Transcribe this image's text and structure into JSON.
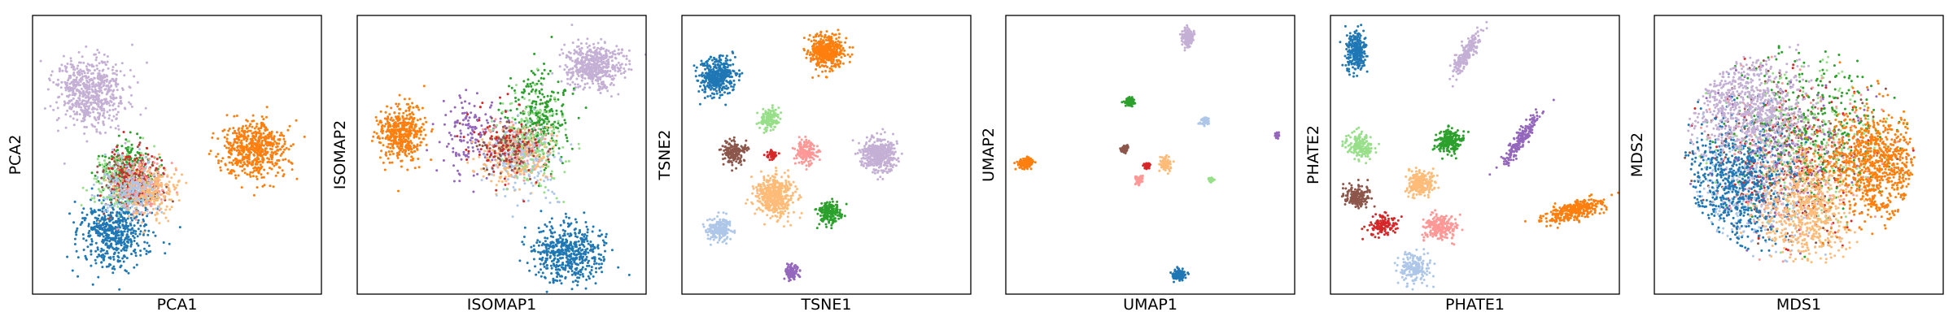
{
  "colors": {
    "c0": "#1f77b4",
    "c1": "#aec7e8",
    "c2": "#ff7f0e",
    "c3": "#ffbb78",
    "c4": "#2ca02c",
    "c5": "#98df8a",
    "c6": "#d62728",
    "c7": "#ff9896",
    "c8": "#9467bd",
    "c9": "#c5b0d5",
    "c10": "#8c564b"
  },
  "chart_data": [
    {
      "type": "scatter",
      "xlabel": "PCA1",
      "ylabel": "PCA2",
      "xlim": [
        0,
        100
      ],
      "ylim": [
        0,
        100
      ],
      "ticks": "none",
      "grid": false,
      "legend": "none",
      "clusters": [
        {
          "color": "c9",
          "x": 20,
          "y": 72,
          "sx": 6,
          "sy": 6,
          "n": 620
        },
        {
          "color": "c2",
          "x": 77,
          "y": 52,
          "sx": 6,
          "sy": 5,
          "n": 560
        },
        {
          "color": "c0",
          "x": 28,
          "y": 22,
          "sx": 6,
          "sy": 6,
          "n": 560
        },
        {
          "color": "c4",
          "x": 33,
          "y": 44,
          "sx": 5,
          "sy": 5,
          "n": 260
        },
        {
          "color": "c5",
          "x": 31,
          "y": 41,
          "sx": 5,
          "sy": 5,
          "n": 200
        },
        {
          "color": "c10",
          "x": 34,
          "y": 40,
          "sx": 5,
          "sy": 5,
          "n": 160
        },
        {
          "color": "c6",
          "x": 35,
          "y": 43,
          "sx": 5,
          "sy": 5,
          "n": 140
        },
        {
          "color": "c7",
          "x": 38,
          "y": 38,
          "sx": 5,
          "sy": 5,
          "n": 180
        },
        {
          "color": "c3",
          "x": 41,
          "y": 37,
          "sx": 5,
          "sy": 5,
          "n": 220
        },
        {
          "color": "c1",
          "x": 33,
          "y": 38,
          "sx": 5,
          "sy": 5,
          "n": 180
        }
      ]
    },
    {
      "type": "scatter",
      "xlabel": "ISOMAP1",
      "ylabel": "ISOMAP2",
      "xlim": [
        0,
        100
      ],
      "ylim": [
        0,
        100
      ],
      "ticks": "none",
      "grid": false,
      "legend": "none",
      "clusters": [
        {
          "color": "c9",
          "x": 82,
          "y": 82,
          "sx": 5,
          "sy": 4,
          "n": 520
        },
        {
          "color": "c2",
          "x": 15,
          "y": 58,
          "sx": 4,
          "sy": 5,
          "n": 420
        },
        {
          "color": "c0",
          "x": 73,
          "y": 15,
          "sx": 6,
          "sy": 5,
          "n": 520
        },
        {
          "color": "c4",
          "x": 63,
          "y": 64,
          "sx": 5,
          "sy": 8,
          "n": 280
        },
        {
          "color": "c8",
          "x": 40,
          "y": 58,
          "sx": 6,
          "sy": 7,
          "n": 160
        },
        {
          "color": "c7",
          "x": 55,
          "y": 52,
          "sx": 5,
          "sy": 5,
          "n": 180
        },
        {
          "color": "c3",
          "x": 55,
          "y": 50,
          "sx": 6,
          "sy": 5,
          "n": 240
        },
        {
          "color": "c1",
          "x": 58,
          "y": 48,
          "sx": 6,
          "sy": 8,
          "n": 160
        },
        {
          "color": "c10",
          "x": 52,
          "y": 52,
          "sx": 5,
          "sy": 5,
          "n": 120
        },
        {
          "color": "c5",
          "x": 60,
          "y": 55,
          "sx": 6,
          "sy": 8,
          "n": 140
        },
        {
          "color": "c6",
          "x": 50,
          "y": 54,
          "sx": 7,
          "sy": 7,
          "n": 80
        }
      ]
    },
    {
      "type": "scatter",
      "xlabel": "TSNE1",
      "ylabel": "TSNE2",
      "xlim": [
        0,
        100
      ],
      "ylim": [
        0,
        100
      ],
      "ticks": "none",
      "grid": false,
      "legend": "none",
      "clusters": [
        {
          "color": "c0",
          "x": 12,
          "y": 78,
          "sx": 3,
          "sy": 3,
          "n": 420
        },
        {
          "color": "c2",
          "x": 50,
          "y": 87,
          "sx": 3,
          "sy": 3,
          "n": 420
        },
        {
          "color": "c9",
          "x": 68,
          "y": 50,
          "sx": 3,
          "sy": 3,
          "n": 420
        },
        {
          "color": "c3",
          "x": 32,
          "y": 35,
          "sx": 3.3,
          "sy": 3.3,
          "n": 480
        },
        {
          "color": "c5",
          "x": 30,
          "y": 63,
          "sx": 1.8,
          "sy": 1.8,
          "n": 150
        },
        {
          "color": "c10",
          "x": 18,
          "y": 51,
          "sx": 2,
          "sy": 2,
          "n": 170
        },
        {
          "color": "c7",
          "x": 43,
          "y": 51,
          "sx": 2,
          "sy": 2,
          "n": 170
        },
        {
          "color": "c6",
          "x": 31,
          "y": 50,
          "sx": 0.9,
          "sy": 0.9,
          "n": 45
        },
        {
          "color": "c4",
          "x": 51,
          "y": 29,
          "sx": 2,
          "sy": 2,
          "n": 180
        },
        {
          "color": "c1",
          "x": 13,
          "y": 23,
          "sx": 2.2,
          "sy": 2.2,
          "n": 200
        },
        {
          "color": "c8",
          "x": 38,
          "y": 8,
          "sx": 1.3,
          "sy": 1.3,
          "n": 90
        }
      ]
    },
    {
      "type": "scatter",
      "xlabel": "UMAP1",
      "ylabel": "UMAP2",
      "xlim": [
        0,
        100
      ],
      "ylim": [
        0,
        100
      ],
      "ticks": "none",
      "grid": false,
      "legend": "none",
      "clusters": [
        {
          "color": "c9",
          "x": 63,
          "y": 92,
          "sx": 1,
          "sy": 1.6,
          "n": 160
        },
        {
          "color": "c2",
          "x": 7,
          "y": 47,
          "sx": 1.3,
          "sy": 0.9,
          "n": 150
        },
        {
          "color": "c0",
          "x": 60,
          "y": 7,
          "sx": 1,
          "sy": 1,
          "n": 140
        },
        {
          "color": "c4",
          "x": 43,
          "y": 69,
          "sx": 0.9,
          "sy": 0.7,
          "n": 90
        },
        {
          "color": "c1",
          "x": 69,
          "y": 62,
          "sx": 0.8,
          "sy": 0.7,
          "n": 80
        },
        {
          "color": "c10",
          "x": 41,
          "y": 52,
          "sx": 0.7,
          "sy": 0.7,
          "n": 50
        },
        {
          "color": "c6",
          "x": 49,
          "y": 46,
          "sx": 0.7,
          "sy": 0.5,
          "n": 40
        },
        {
          "color": "c3",
          "x": 55,
          "y": 47,
          "sx": 1,
          "sy": 1.1,
          "n": 110
        },
        {
          "color": "c7",
          "x": 46,
          "y": 41,
          "sx": 0.7,
          "sy": 0.7,
          "n": 60
        },
        {
          "color": "c5",
          "x": 71,
          "y": 41,
          "sx": 0.5,
          "sy": 0.5,
          "n": 30
        },
        {
          "color": "c8",
          "x": 94,
          "y": 57,
          "sx": 0.4,
          "sy": 0.4,
          "n": 25
        }
      ]
    },
    {
      "type": "scatter",
      "xlabel": "PHATE1",
      "ylabel": "PHATE2",
      "xlim": [
        0,
        100
      ],
      "ylim": [
        0,
        100
      ],
      "ticks": "none",
      "grid": false,
      "legend": "none",
      "clusters": [
        {
          "color": "c0",
          "x": 9,
          "y": 87,
          "sx": 1.7,
          "sy": 3.5,
          "n": 260
        },
        {
          "color": "c9",
          "x": 47,
          "y": 86,
          "sx": 2.5,
          "sy": 4,
          "n": 200,
          "rho": 0.85
        },
        {
          "color": "c8",
          "x": 66,
          "y": 56,
          "sx": 3,
          "sy": 4.5,
          "n": 200,
          "rho": 0.9
        },
        {
          "color": "c2",
          "x": 84,
          "y": 30,
          "sx": 5,
          "sy": 2.2,
          "n": 330,
          "rho": 0.6
        },
        {
          "color": "c4",
          "x": 41,
          "y": 55,
          "sx": 2.2,
          "sy": 2.2,
          "n": 220
        },
        {
          "color": "c5",
          "x": 10,
          "y": 53,
          "sx": 2.4,
          "sy": 2,
          "n": 160
        },
        {
          "color": "c10",
          "x": 9,
          "y": 35,
          "sx": 2.2,
          "sy": 2,
          "n": 180
        },
        {
          "color": "c3",
          "x": 31,
          "y": 40,
          "sx": 2.3,
          "sy": 2.3,
          "n": 240
        },
        {
          "color": "c6",
          "x": 18,
          "y": 25,
          "sx": 2.5,
          "sy": 2,
          "n": 130
        },
        {
          "color": "c7",
          "x": 38,
          "y": 24,
          "sx": 3,
          "sy": 2.3,
          "n": 220
        },
        {
          "color": "c1",
          "x": 29,
          "y": 9,
          "sx": 2.5,
          "sy": 3,
          "n": 180
        }
      ]
    },
    {
      "type": "scatter",
      "xlabel": "MDS1",
      "ylabel": "MDS2",
      "xlim": [
        0,
        100
      ],
      "ylim": [
        0,
        100
      ],
      "ticks": "none",
      "grid": false,
      "legend": "none",
      "clusters": [
        {
          "color": "c10",
          "x": 45,
          "y": 50,
          "sx": 14,
          "sy": 14,
          "n": 220,
          "disk": 40
        },
        {
          "color": "c6",
          "x": 45,
          "y": 50,
          "sx": 14,
          "sy": 14,
          "n": 220,
          "disk": 40
        },
        {
          "color": "c5",
          "x": 50,
          "y": 55,
          "sx": 14,
          "sy": 14,
          "n": 300,
          "disk": 40
        },
        {
          "color": "c4",
          "x": 55,
          "y": 60,
          "sx": 14,
          "sy": 14,
          "n": 320,
          "disk": 40
        },
        {
          "color": "c7",
          "x": 48,
          "y": 45,
          "sx": 14,
          "sy": 14,
          "n": 260,
          "disk": 40
        },
        {
          "color": "c8",
          "x": 45,
          "y": 50,
          "sx": 14,
          "sy": 14,
          "n": 180,
          "disk": 40
        },
        {
          "color": "c1",
          "x": 30,
          "y": 35,
          "sx": 12,
          "sy": 12,
          "n": 300,
          "disk": 40
        },
        {
          "color": "c0",
          "x": 27,
          "y": 40,
          "sx": 10,
          "sy": 12,
          "n": 620,
          "disk": 40
        },
        {
          "color": "c3",
          "x": 53,
          "y": 30,
          "sx": 8,
          "sy": 9,
          "n": 600,
          "disk": 40
        },
        {
          "color": "c9",
          "x": 32,
          "y": 68,
          "sx": 10,
          "sy": 9,
          "n": 720,
          "disk": 40
        },
        {
          "color": "c2",
          "x": 78,
          "y": 46,
          "sx": 9,
          "sy": 10,
          "n": 800,
          "disk": 40
        }
      ]
    }
  ]
}
